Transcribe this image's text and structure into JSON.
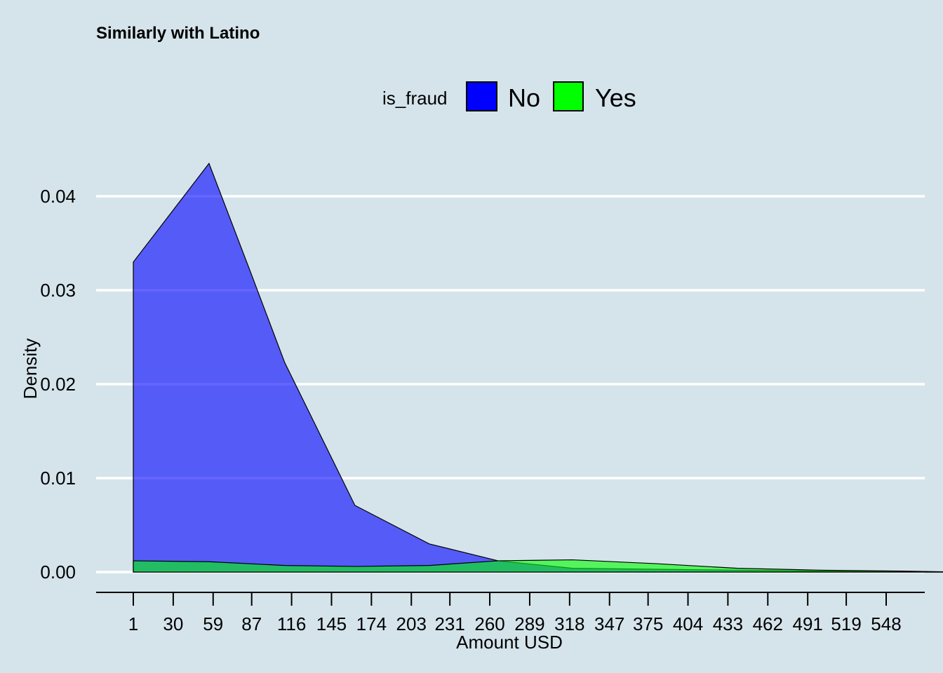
{
  "chart_data": {
    "type": "area",
    "title": "Similarly with Latino",
    "xlabel": "Amount USD",
    "ylabel": "Density",
    "xlim": [
      -10,
      600
    ],
    "ylim": [
      0,
      0.045
    ],
    "x_ticks": [
      1,
      30,
      59,
      87,
      116,
      145,
      174,
      203,
      231,
      260,
      289,
      318,
      347,
      375,
      404,
      433,
      462,
      491,
      519,
      548
    ],
    "y_ticks": [
      0.0,
      0.01,
      0.02,
      0.03,
      0.04
    ],
    "y_tick_labels": [
      "0.00",
      "0.01",
      "0.02",
      "0.03",
      "0.04"
    ],
    "grid": "horizontal major",
    "legend": {
      "title": "is_fraud",
      "position": "top",
      "entries": [
        {
          "name": "No",
          "color": "#0000ff"
        },
        {
          "name": "Yes",
          "color": "#00ff00"
        }
      ]
    },
    "series": [
      {
        "name": "No",
        "color": "#0000ff",
        "x": [
          1,
          56,
          86,
          111,
          162,
          216,
          266,
          320,
          380,
          440,
          500,
          560,
          600
        ],
        "y": [
          0.033,
          0.0435,
          0.032,
          0.0223,
          0.0071,
          0.003,
          0.0012,
          0.0004,
          0.0003,
          0.0002,
          0.0001,
          5e-05,
          0.0
        ]
      },
      {
        "name": "Yes",
        "color": "#00ff00",
        "x": [
          1,
          56,
          111,
          162,
          216,
          266,
          320,
          380,
          440,
          500,
          560,
          600
        ],
        "y": [
          0.0012,
          0.0011,
          0.0007,
          0.0006,
          0.0007,
          0.0012,
          0.0013,
          0.0009,
          0.0004,
          0.0002,
          0.0001,
          0.0
        ]
      }
    ]
  },
  "colors": {
    "background": "#d5e4eb",
    "gridline": "#ffffff",
    "axis": "#000000"
  }
}
